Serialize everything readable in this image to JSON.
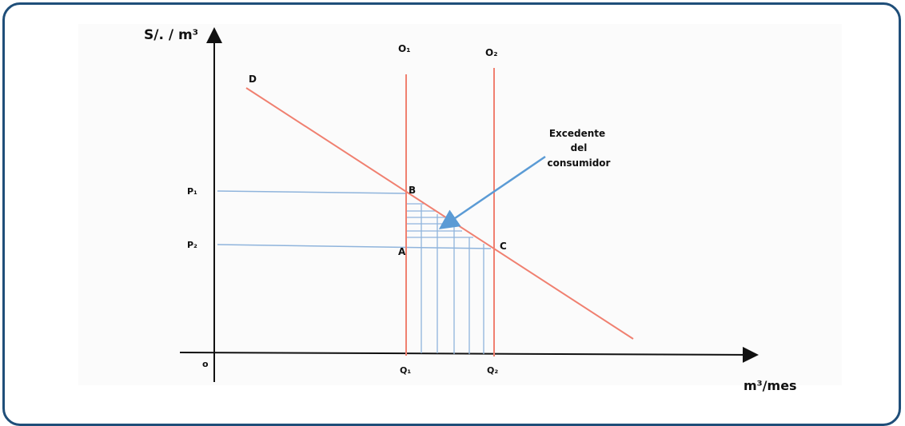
{
  "axes": {
    "y_label": "S/. / m³",
    "x_label": "m³/mes",
    "origin": "o"
  },
  "curves": {
    "demand": "D",
    "supply_1": "O₁",
    "supply_2": "O₂"
  },
  "points": {
    "b": "B",
    "a": "A",
    "c": "C"
  },
  "ticks": {
    "p1": "P₁",
    "p2": "P₂",
    "q1": "Q₁",
    "q2": "Q₂"
  },
  "annotation": {
    "line1": "Excedente",
    "line2": "del",
    "line3": "consumidor"
  },
  "colors": {
    "axis": "#111111",
    "curve": "#f08070",
    "guide": "#8fb4dc",
    "arrow": "#5b9bd5",
    "frame": "#1f4e79"
  }
}
